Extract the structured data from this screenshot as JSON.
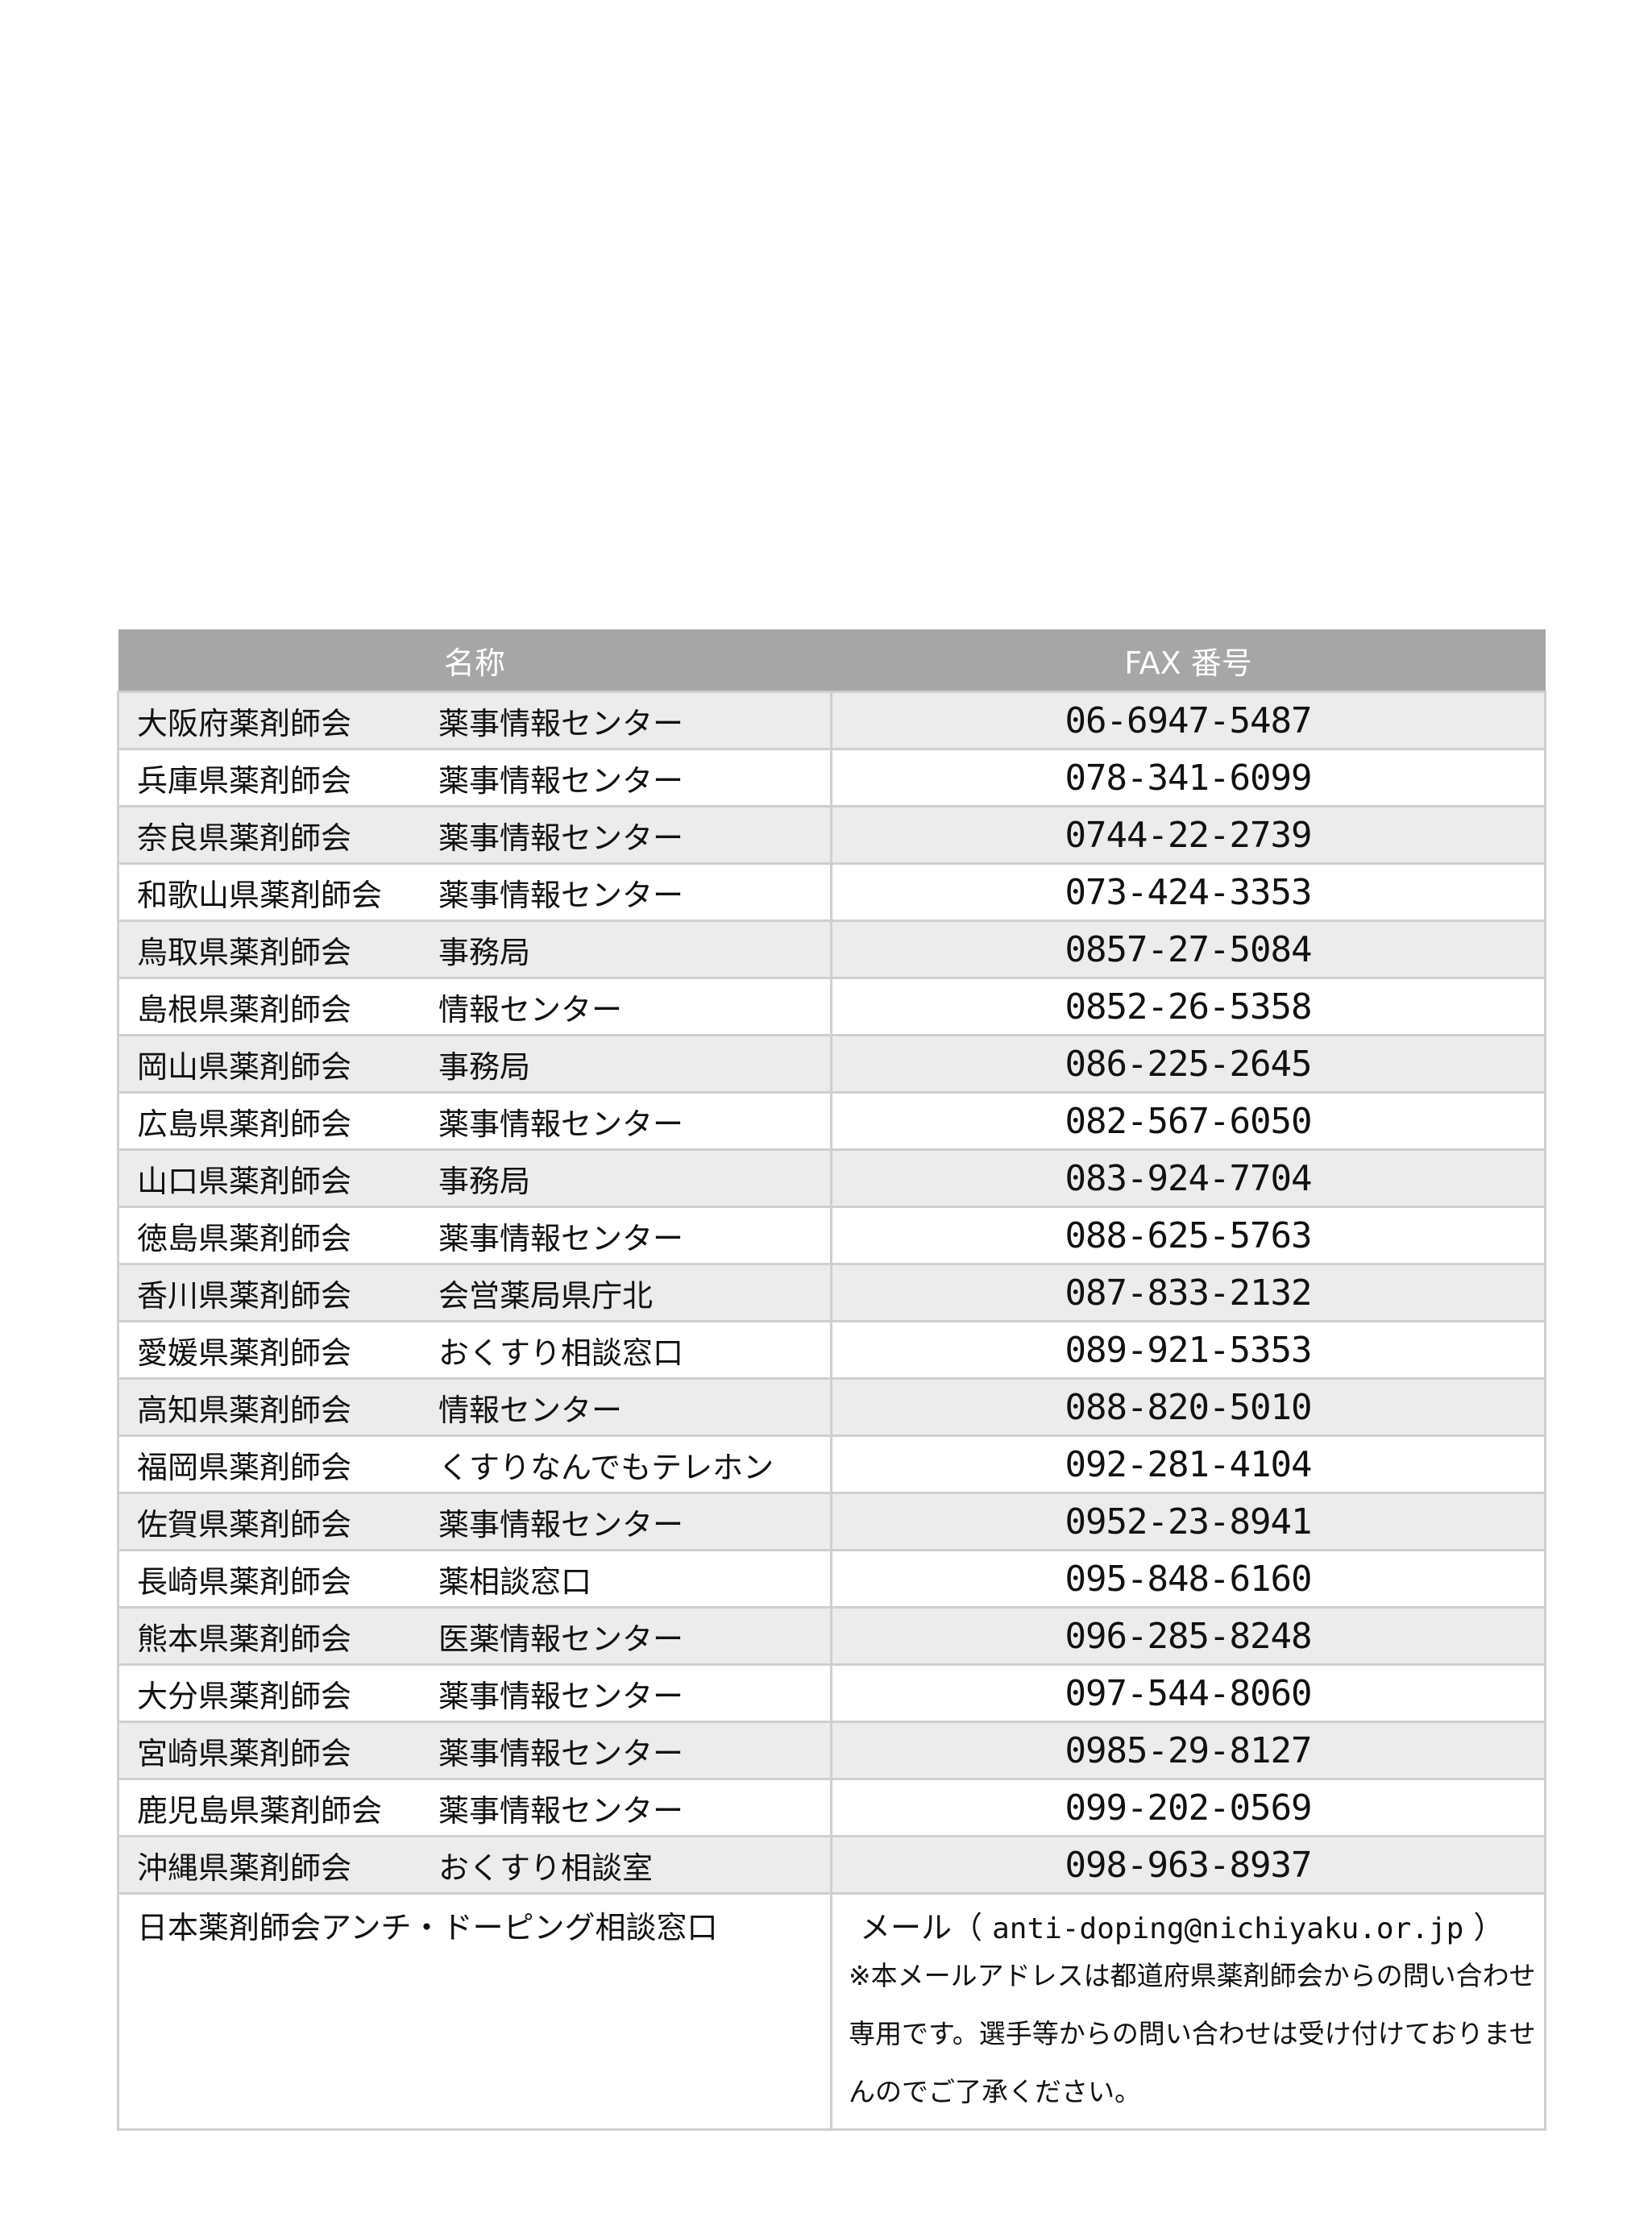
{
  "table": {
    "headers": {
      "name": "名称",
      "fax": "FAX 番号"
    },
    "rows": [
      {
        "org": "大阪府薬剤師会",
        "dept": "薬事情報センター",
        "fax": "06-6947-5487"
      },
      {
        "org": "兵庫県薬剤師会",
        "dept": "薬事情報センター",
        "fax": "078-341-6099"
      },
      {
        "org": "奈良県薬剤師会",
        "dept": "薬事情報センター",
        "fax": "0744-22-2739"
      },
      {
        "org": "和歌山県薬剤師会",
        "dept": "薬事情報センター",
        "fax": "073-424-3353"
      },
      {
        "org": "鳥取県薬剤師会",
        "dept": "事務局",
        "fax": "0857-27-5084"
      },
      {
        "org": "島根県薬剤師会",
        "dept": "情報センター",
        "fax": "0852-26-5358"
      },
      {
        "org": "岡山県薬剤師会",
        "dept": "事務局",
        "fax": "086-225-2645"
      },
      {
        "org": "広島県薬剤師会",
        "dept": "薬事情報センター",
        "fax": "082-567-6050"
      },
      {
        "org": "山口県薬剤師会",
        "dept": "事務局",
        "fax": "083-924-7704"
      },
      {
        "org": "徳島県薬剤師会",
        "dept": "薬事情報センター",
        "fax": "088-625-5763"
      },
      {
        "org": "香川県薬剤師会",
        "dept": "会営薬局県庁北",
        "fax": "087-833-2132"
      },
      {
        "org": "愛媛県薬剤師会",
        "dept": "おくすり相談窓口",
        "fax": "089-921-5353"
      },
      {
        "org": "高知県薬剤師会",
        "dept": "情報センター",
        "fax": "088-820-5010"
      },
      {
        "org": "福岡県薬剤師会",
        "dept": "くすりなんでもテレホン",
        "fax": "092-281-4104"
      },
      {
        "org": "佐賀県薬剤師会",
        "dept": "薬事情報センター",
        "fax": "0952-23-8941"
      },
      {
        "org": "長崎県薬剤師会",
        "dept": "薬相談窓口",
        "fax": "095-848-6160"
      },
      {
        "org": "熊本県薬剤師会",
        "dept": "医薬情報センター",
        "fax": "096-285-8248"
      },
      {
        "org": "大分県薬剤師会",
        "dept": "薬事情報センター",
        "fax": "097-544-8060"
      },
      {
        "org": "宮崎県薬剤師会",
        "dept": "薬事情報センター",
        "fax": "0985-29-8127"
      },
      {
        "org": "鹿児島県薬剤師会",
        "dept": "薬事情報センター",
        "fax": "099-202-0569"
      },
      {
        "org": "沖縄県薬剤師会",
        "dept": "おくすり相談室",
        "fax": "098-963-8937"
      }
    ],
    "last": {
      "name": "日本薬剤師会アンチ・ドーピング相談窓口",
      "mail_label": "メール（",
      "mail_address": "anti-doping@nichiyaku.or.jp",
      "mail_close": "）",
      "note": "※本メールアドレスは都道府県薬剤師会からの問い合わせ専用です。選手等からの問い合わせは受け付けておりませんのでご了承ください。"
    }
  }
}
